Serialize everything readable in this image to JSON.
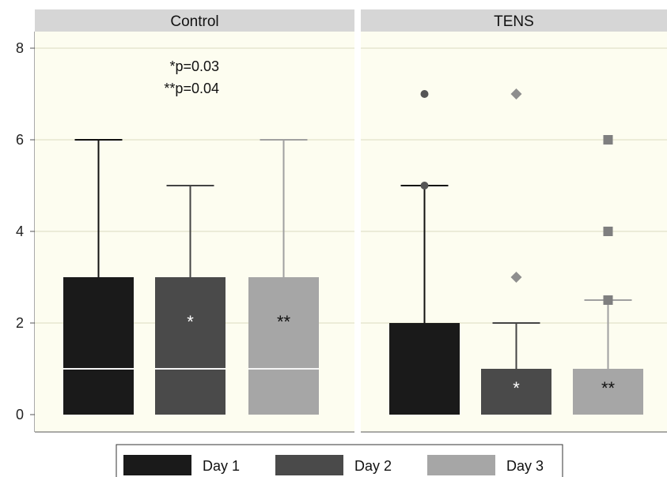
{
  "chart_data": {
    "type": "box",
    "y_range": [
      0,
      8
    ],
    "y_ticks": [
      0,
      2,
      4,
      6,
      8
    ],
    "grid": true,
    "legend_position": "bottom",
    "series": [
      {
        "name": "Day 1",
        "color": "#1a1a1a"
      },
      {
        "name": "Day 2",
        "color": "#4a4a4a"
      },
      {
        "name": "Day 3",
        "color": "#a6a6a6"
      }
    ],
    "panels": [
      {
        "title": "Control",
        "annotations": [
          "*p=0.03",
          "**p=0.04"
        ],
        "boxes": [
          {
            "series": "Day 1",
            "q1": 0,
            "median": 1,
            "q3": 3,
            "whisker_high": 6,
            "outliers": [],
            "marker": "",
            "label": ""
          },
          {
            "series": "Day 2",
            "q1": 0,
            "median": 1,
            "q3": 3,
            "whisker_high": 5,
            "outliers": [],
            "marker": "",
            "label": "*"
          },
          {
            "series": "Day 3",
            "q1": 0,
            "median": 1,
            "q3": 3,
            "whisker_high": 6,
            "outliers": [],
            "marker": "",
            "label": "**"
          }
        ]
      },
      {
        "title": "TENS",
        "annotations": [],
        "boxes": [
          {
            "series": "Day 1",
            "q1": 0,
            "median": 2,
            "q3": 2,
            "whisker_high": 5,
            "outliers": [
              5,
              7
            ],
            "marker": "circle",
            "label": ""
          },
          {
            "series": "Day 2",
            "q1": 0,
            "median": 1,
            "q3": 1,
            "whisker_high": 2,
            "outliers": [
              3,
              7
            ],
            "marker": "diamond",
            "label": "*"
          },
          {
            "series": "Day 3",
            "q1": 0,
            "median": 1,
            "q3": 1,
            "whisker_high": 2.5,
            "outliers": [
              2.5,
              4,
              6
            ],
            "marker": "square",
            "label": "**"
          }
        ]
      }
    ]
  }
}
